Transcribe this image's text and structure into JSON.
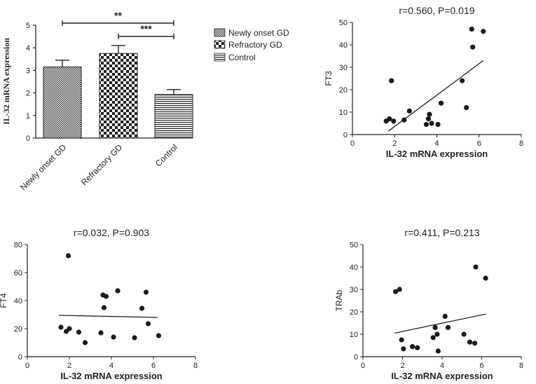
{
  "chart_data": [
    {
      "type": "bar",
      "ylabel": "IL-32 mRNA expression",
      "ylim": [
        0,
        5
      ],
      "yticks": [
        "0",
        "1",
        "2",
        "3",
        "4",
        "5"
      ],
      "categories": [
        "Newly onset GD",
        "Refractory GD",
        "Control"
      ],
      "values": [
        3.15,
        3.75,
        1.93
      ],
      "errors": [
        0.3,
        0.35,
        0.22
      ],
      "legend": [
        "Newly onset GD",
        "Refractory GD",
        "Control"
      ],
      "legend_position": "right",
      "significance": [
        {
          "label": "**",
          "from": 0,
          "to": 2,
          "level": 5.0
        },
        {
          "label": "***",
          "from": 1,
          "to": 2,
          "level": 4.4
        }
      ]
    },
    {
      "type": "scatter",
      "title": "r=0.560, P=0.019",
      "xlabel": "IL-32 mRNA expression",
      "ylabel": "FT3",
      "xlim": [
        0,
        8
      ],
      "ylim": [
        0,
        50
      ],
      "xticks": [
        "0",
        "2",
        "4",
        "6",
        "8"
      ],
      "yticks": [
        "0",
        "10",
        "20",
        "30",
        "40",
        "50"
      ],
      "x": [
        1.6,
        1.75,
        1.85,
        1.95,
        2.45,
        2.7,
        3.5,
        3.6,
        3.65,
        3.75,
        4.05,
        4.2,
        5.2,
        5.4,
        5.65,
        5.7,
        6.2
      ],
      "y": [
        6,
        7,
        24,
        6,
        6.5,
        10.5,
        4.5,
        7,
        9,
        5,
        4.5,
        14,
        24,
        12,
        47,
        39,
        46
      ],
      "fit": {
        "x": [
          1.7,
          6.2
        ],
        "y": [
          1.5,
          33
        ]
      }
    },
    {
      "type": "scatter",
      "title": "r=0.032, P=0.903",
      "xlabel": "IL-32 mRNA expression",
      "ylabel": "FT4",
      "xlim": [
        0,
        8
      ],
      "ylim": [
        0,
        80
      ],
      "xticks": [
        "0",
        "2",
        "4",
        "6",
        "8"
      ],
      "yticks": [
        "0",
        "20",
        "40",
        "60",
        "80"
      ],
      "x": [
        1.6,
        1.85,
        1.95,
        2.0,
        2.45,
        2.75,
        3.5,
        3.6,
        3.65,
        3.75,
        4.1,
        4.3,
        5.1,
        5.45,
        5.65,
        5.75,
        6.25
      ],
      "y": [
        21,
        18,
        72,
        20,
        17.5,
        10,
        17,
        44,
        35,
        43,
        14,
        47,
        13.5,
        34.5,
        46,
        23.5,
        15
      ],
      "fit": {
        "x": [
          1.5,
          6.2
        ],
        "y": [
          29.5,
          28
        ]
      }
    },
    {
      "type": "scatter",
      "title": "r=0.411, P=0.213",
      "xlabel": "IL-32 mRNA expression",
      "ylabel": "TRAb",
      "xlim": [
        0,
        8
      ],
      "ylim": [
        0,
        50
      ],
      "xticks": [
        "0",
        "2",
        "4",
        "6",
        "8"
      ],
      "yticks": [
        "0",
        "10",
        "20",
        "30",
        "40",
        "50"
      ],
      "x": [
        1.65,
        1.85,
        1.95,
        2.05,
        2.5,
        2.75,
        3.55,
        3.65,
        3.75,
        3.8,
        4.15,
        4.3,
        5.1,
        5.4,
        5.65,
        5.7,
        6.2
      ],
      "y": [
        29,
        30,
        7.5,
        3.5,
        4.5,
        4,
        8.5,
        13,
        10,
        2.5,
        18,
        13,
        10,
        6.5,
        6,
        40,
        35
      ],
      "fit": {
        "x": [
          1.6,
          6.2
        ],
        "y": [
          10.5,
          19
        ]
      }
    }
  ]
}
